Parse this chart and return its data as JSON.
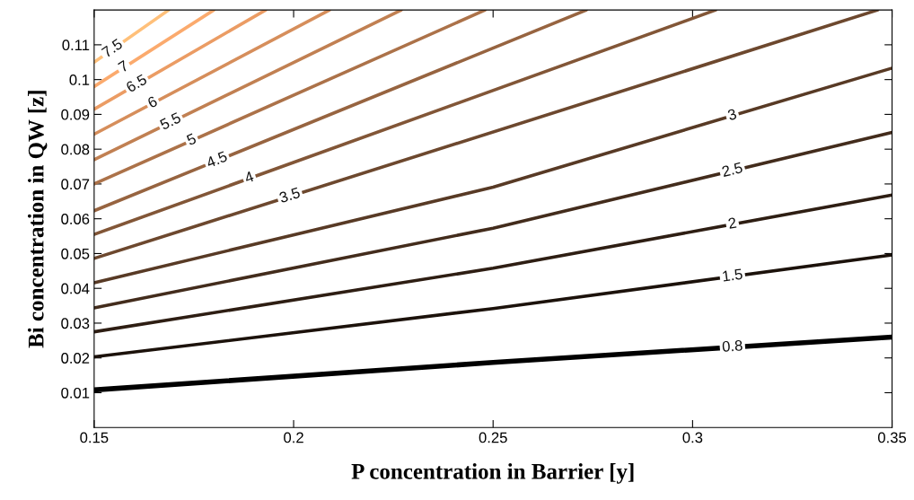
{
  "chart_data": {
    "type": "line",
    "xlabel": "P concentration in Barrier [y]",
    "ylabel": "Bi concentration in QW [z]",
    "xlim": [
      0.15,
      0.35
    ],
    "ylim": [
      0,
      0.12
    ],
    "xticks": [
      0.15,
      0.2,
      0.25,
      0.3,
      0.35
    ],
    "yticks": [
      0.01,
      0.02,
      0.03,
      0.04,
      0.05,
      0.06,
      0.07,
      0.08,
      0.09,
      0.1,
      0.11
    ],
    "grid": false,
    "legend": false,
    "series": [
      {
        "name": "0.8",
        "color": "#000000",
        "x": [
          0.15,
          0.25,
          0.35
        ],
        "values": [
          0.0108,
          0.0187,
          0.026
        ]
      },
      {
        "name": "1.5",
        "color": "#1c120b",
        "x": [
          0.15,
          0.25,
          0.35
        ],
        "values": [
          0.0203,
          0.0342,
          0.0496
        ]
      },
      {
        "name": "2",
        "color": "#2e1e13",
        "x": [
          0.15,
          0.25,
          0.35
        ],
        "values": [
          0.0275,
          0.0458,
          0.0668
        ]
      },
      {
        "name": "2.5",
        "color": "#432c1c",
        "x": [
          0.15,
          0.25,
          0.35
        ],
        "values": [
          0.0344,
          0.0573,
          0.0848
        ]
      },
      {
        "name": "3",
        "color": "#583a25",
        "x": [
          0.15,
          0.25,
          0.35
        ],
        "values": [
          0.0416,
          0.0691,
          0.1033
        ]
      },
      {
        "name": "3.5",
        "color": "#6d482e",
        "x": [
          0.15,
          0.3464
        ],
        "values": [
          0.0486,
          0.12
        ]
      },
      {
        "name": "4",
        "color": "#825637",
        "x": [
          0.15,
          0.3058
        ],
        "values": [
          0.0555,
          0.12
        ]
      },
      {
        "name": "4.5",
        "color": "#976440",
        "x": [
          0.15,
          0.2734
        ],
        "values": [
          0.0623,
          0.12
        ]
      },
      {
        "name": "5",
        "color": "#ac7249",
        "x": [
          0.15,
          0.248
        ],
        "values": [
          0.07,
          0.12
        ]
      },
      {
        "name": "5.5",
        "color": "#c18052",
        "x": [
          0.15,
          0.227
        ],
        "values": [
          0.077,
          0.12
        ]
      },
      {
        "name": "6",
        "color": "#d68e5b",
        "x": [
          0.15,
          0.209
        ],
        "values": [
          0.0843,
          0.12
        ]
      },
      {
        "name": "6.5",
        "color": "#eb9c64",
        "x": [
          0.15,
          0.193
        ],
        "values": [
          0.0915,
          0.12
        ]
      },
      {
        "name": "7",
        "color": "#fbaa6d",
        "x": [
          0.15,
          0.18
        ],
        "values": [
          0.098,
          0.12
        ]
      },
      {
        "name": "7.5",
        "color": "#ffc07a",
        "x": [
          0.15,
          0.1687
        ],
        "values": [
          0.105,
          0.12
        ]
      }
    ]
  }
}
